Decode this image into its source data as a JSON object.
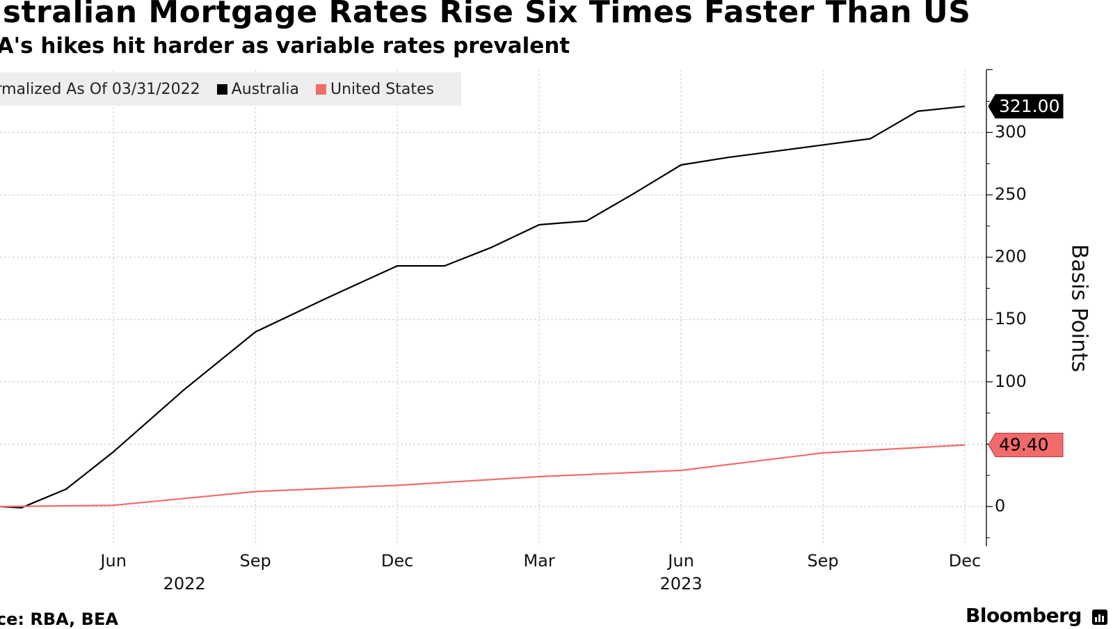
{
  "header": {
    "title": "ustralian Mortgage Rates Rise Six Times Faster Than US",
    "subtitle": "BA's hikes hit harder as variable rates prevalent"
  },
  "legend": {
    "note": "ormalized As Of 03/31/2022",
    "items": [
      {
        "label": "Australia",
        "color": "#000000"
      },
      {
        "label": "United States",
        "color": "#f26b6b"
      }
    ]
  },
  "footer": {
    "source": "urce: RBA, BEA",
    "brand": "Bloomberg"
  },
  "chart_data": {
    "type": "line",
    "title": "ustralian Mortgage Rates Rise Six Times Faster Than US",
    "subtitle": "BA's hikes hit harder as variable rates prevalent",
    "ylabel": "Basis Points",
    "ylim": [
      -30,
      350
    ],
    "yticks": [
      0,
      50,
      100,
      150,
      200,
      250,
      300
    ],
    "ytick_labels": [
      "0",
      "",
      "100",
      "150",
      "200",
      "250",
      "300"
    ],
    "y_axis_side": "right",
    "xlim": [
      -1.8,
      18.6
    ],
    "xticks": [
      {
        "pos": 0.6,
        "label": "Jun"
      },
      {
        "pos": 3.6,
        "label": "Sep"
      },
      {
        "pos": 6.6,
        "label": "Dec"
      },
      {
        "pos": 9.6,
        "label": "Mar"
      },
      {
        "pos": 12.6,
        "label": "Jun"
      },
      {
        "pos": 15.6,
        "label": "Sep"
      },
      {
        "pos": 18.6,
        "label": "Dec"
      }
    ],
    "year_labels": [
      {
        "pos": 2.1,
        "label": "2022"
      },
      {
        "pos": 12.6,
        "label": "2023"
      }
    ],
    "grid": true,
    "legend_position": "top-left",
    "series": [
      {
        "name": "Australia",
        "color": "#000000",
        "x": [
          -1.8,
          -1.35,
          -0.4,
          0.6,
          2.1,
          3.6,
          5.1,
          6.6,
          7.6,
          8.6,
          9.6,
          10.6,
          11.6,
          12.6,
          13.6,
          14.6,
          15.6,
          16.6,
          17.6,
          18.6
        ],
        "y": [
          0,
          -1,
          14,
          44,
          94,
          140,
          167,
          193,
          193,
          208,
          226,
          229,
          251,
          274,
          280,
          285,
          290,
          295,
          317,
          321
        ],
        "last_value_label": "321.00"
      },
      {
        "name": "United States",
        "color": "#f26b6b",
        "x": [
          -1.8,
          0.6,
          3.6,
          6.6,
          9.6,
          12.6,
          15.6,
          18.6
        ],
        "y": [
          0,
          1,
          12,
          17,
          24,
          29,
          43,
          49.4
        ],
        "last_value_label": "49.40"
      }
    ]
  }
}
